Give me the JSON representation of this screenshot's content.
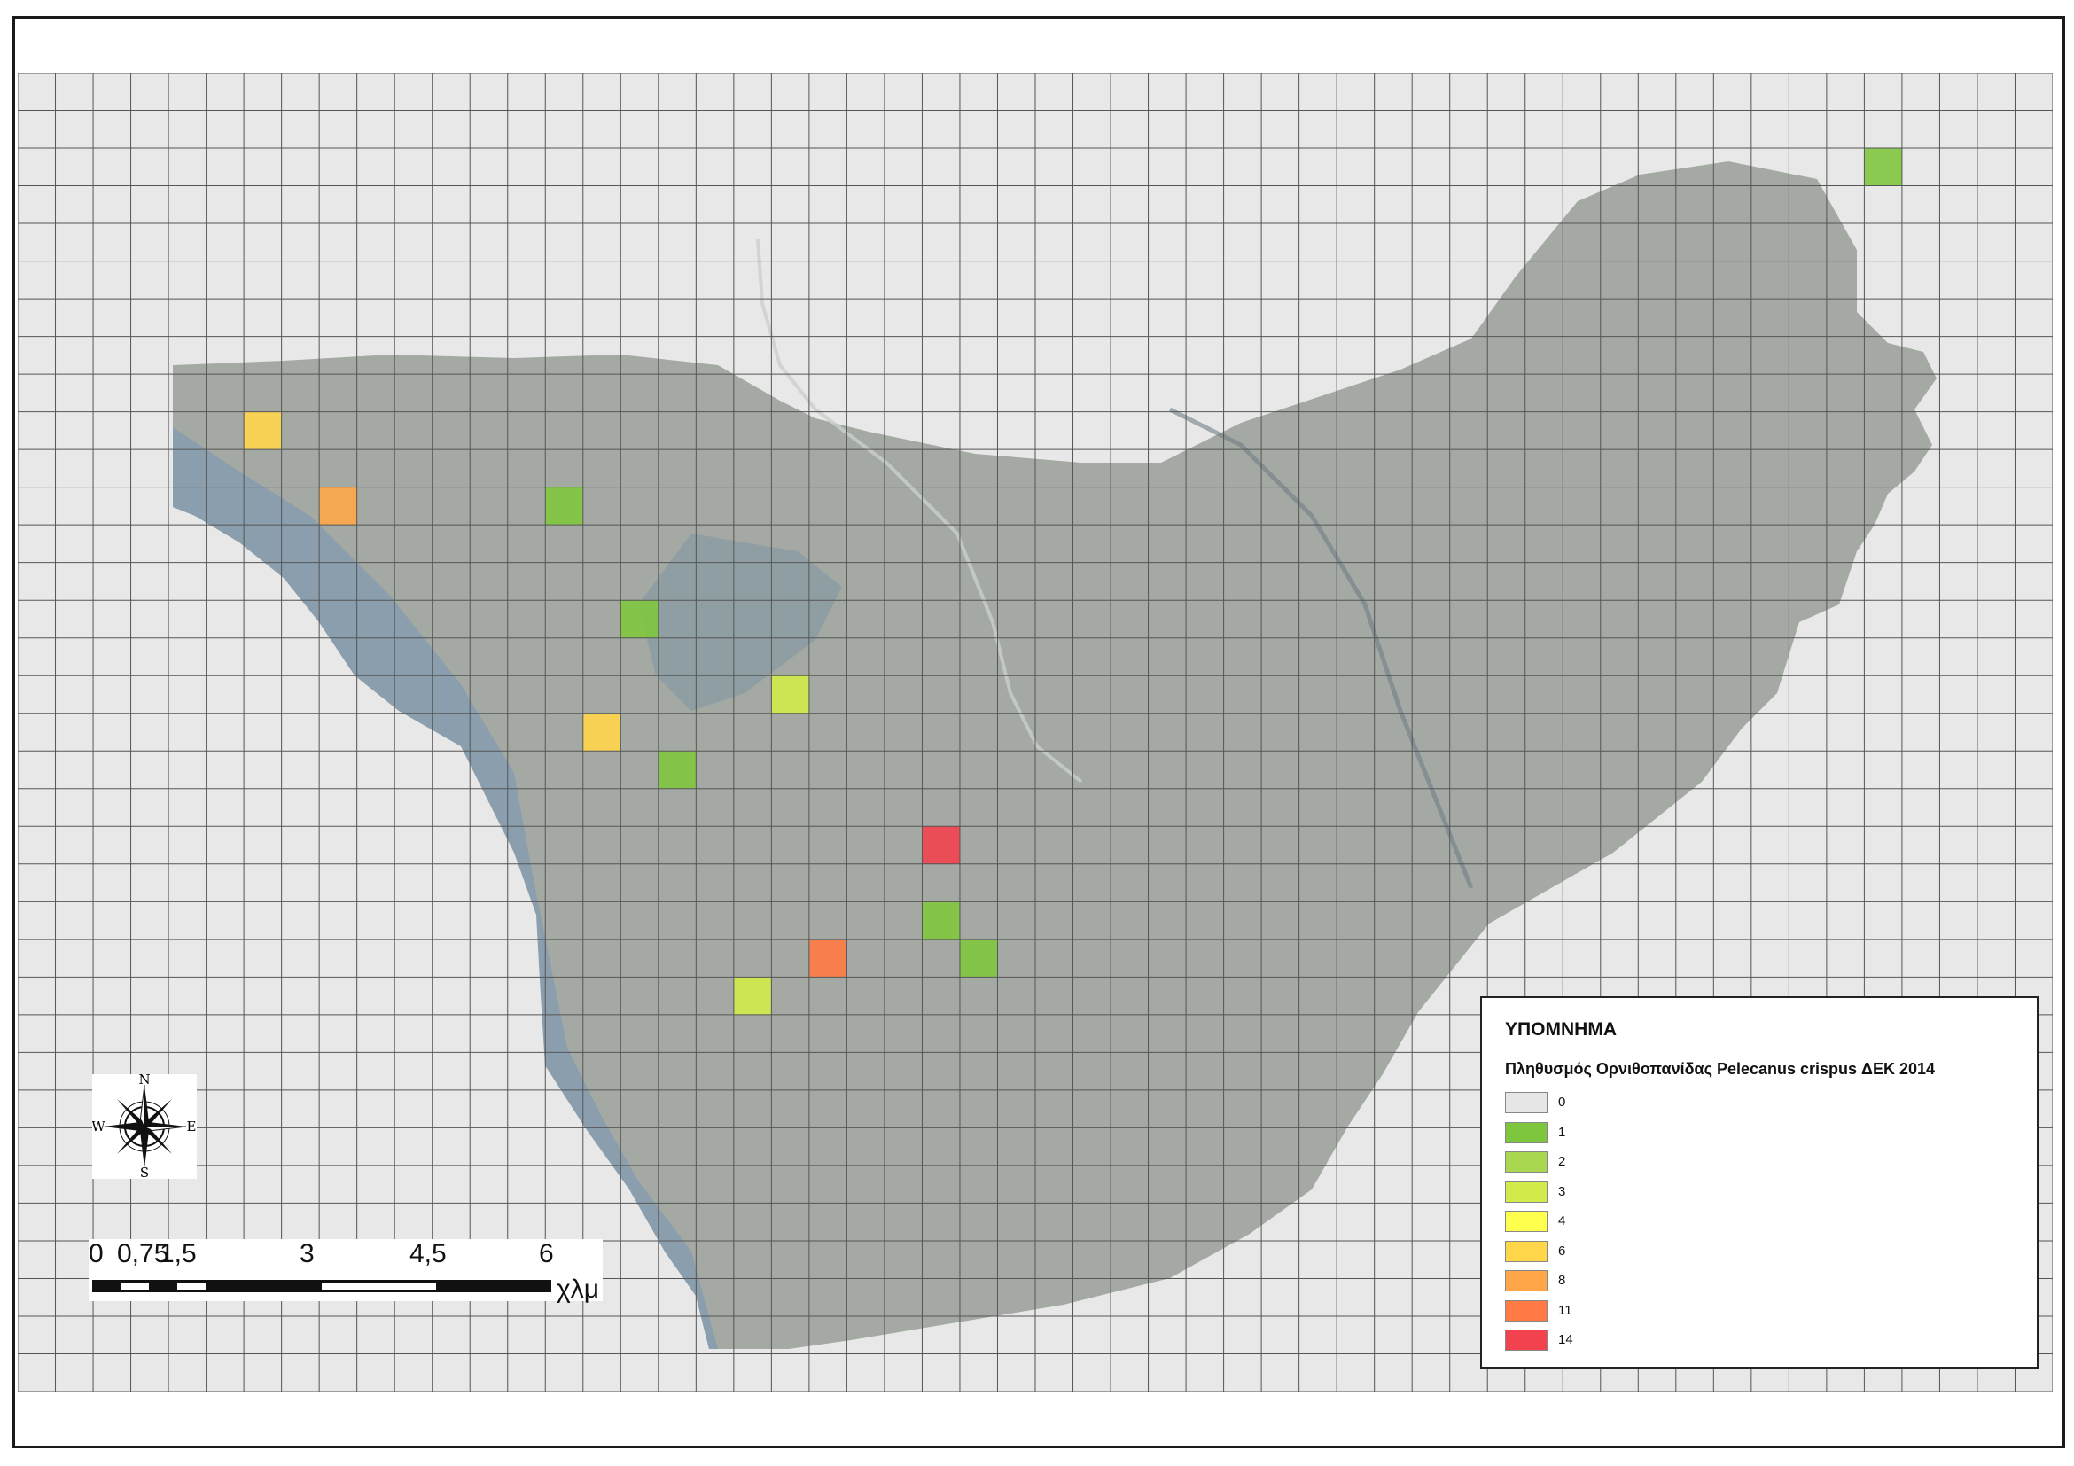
{
  "legend": {
    "title": "ΥΠΟΜΝΗΜΑ",
    "subtitle": "Πληθυσμός Ορνιθοπανίδας Pelecanus crispus ΔΕΚ 2014",
    "classes": [
      {
        "label": "0",
        "color": "#e6e6e6"
      },
      {
        "label": "1",
        "color": "#7fc63f"
      },
      {
        "label": "2",
        "color": "#a9d850"
      },
      {
        "label": "3",
        "color": "#d2ea4a"
      },
      {
        "label": "4",
        "color": "#ffff4d"
      },
      {
        "label": "6",
        "color": "#ffd54a"
      },
      {
        "label": "8",
        "color": "#ffa648"
      },
      {
        "label": "11",
        "color": "#ff7a44"
      },
      {
        "label": "14",
        "color": "#f2424e"
      }
    ]
  },
  "north_arrow": {
    "n": "N",
    "s": "S",
    "e": "E",
    "w": "W",
    "icon": "compass-rose-icon"
  },
  "scalebar": {
    "ticks": [
      "0",
      "0,75",
      "1,5",
      "3",
      "4,5",
      "6"
    ],
    "unit": "χλμ"
  },
  "grid": {
    "columns": 54,
    "rows": 35
  },
  "occupied_cells": [
    {
      "col": 49,
      "row": 2,
      "count": "1"
    },
    {
      "col": 6,
      "row": 9,
      "count": "6"
    },
    {
      "col": 8,
      "row": 11,
      "count": "8"
    },
    {
      "col": 14,
      "row": 11,
      "count": "1"
    },
    {
      "col": 16,
      "row": 14,
      "count": "1"
    },
    {
      "col": 20,
      "row": 16,
      "count": "3"
    },
    {
      "col": 15,
      "row": 17,
      "count": "6"
    },
    {
      "col": 17,
      "row": 18,
      "count": "1"
    },
    {
      "col": 24,
      "row": 20,
      "count": "14"
    },
    {
      "col": 24,
      "row": 22,
      "count": "1"
    },
    {
      "col": 21,
      "row": 23,
      "count": "11"
    },
    {
      "col": 25,
      "row": 23,
      "count": "1"
    },
    {
      "col": 19,
      "row": 24,
      "count": "3"
    }
  ]
}
